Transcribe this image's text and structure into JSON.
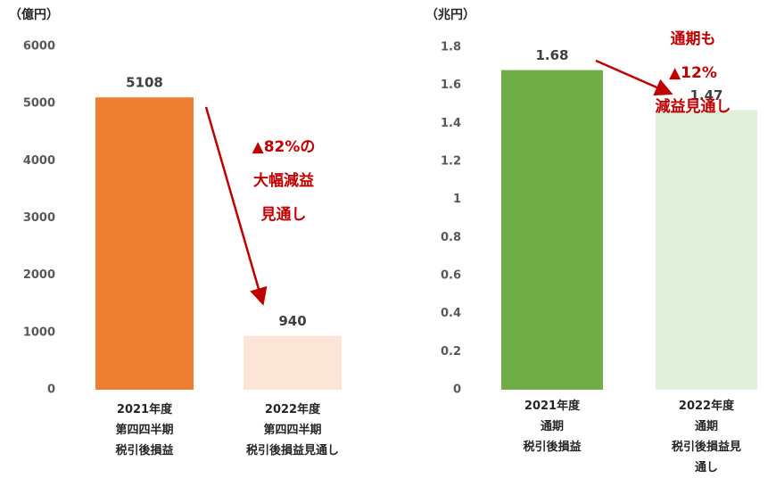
{
  "chart_data": [
    {
      "type": "bar",
      "unit_label": "（億円）",
      "categories": [
        "2021年度\n第四四半期\n税引後損益",
        "2022年度\n第四四半期\n税引後損益見通し"
      ],
      "values": [
        5108,
        940
      ],
      "colors": [
        "#ed7d31",
        "#fbe5d6"
      ],
      "ylim": [
        0,
        6000
      ],
      "yticks": [
        0,
        1000,
        2000,
        3000,
        4000,
        5000,
        6000
      ],
      "annotation": "▲82%の\n大幅減益\n見通し"
    },
    {
      "type": "bar",
      "unit_label": "（兆円）",
      "categories": [
        "2021年度\n通期\n税引後損益",
        "2022年度\n通期\n税引後損益見通し"
      ],
      "values": [
        1.68,
        1.47
      ],
      "colors": [
        "#70ad47",
        "#e2efda"
      ],
      "ylim": [
        0,
        1.8
      ],
      "yticks": [
        0,
        0.2,
        0.4,
        0.6,
        0.8,
        1,
        1.2,
        1.4,
        1.6,
        1.8
      ],
      "annotation": "通期も▲12%\n減益見通し"
    }
  ]
}
